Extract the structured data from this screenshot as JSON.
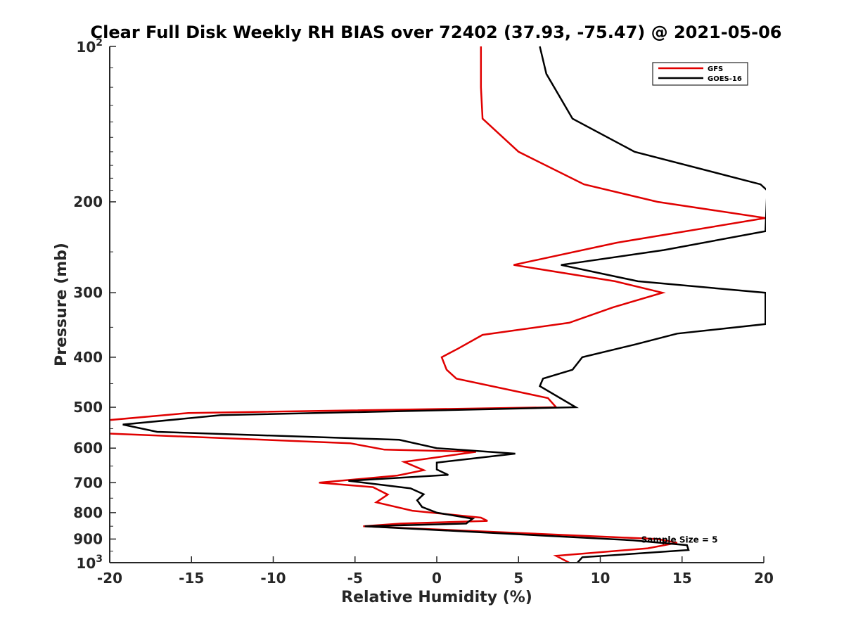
{
  "chart_data": {
    "type": "line",
    "title": "Clear Full Disk Weekly RH BIAS over 72402 (37.93, -75.47) @ 2021-05-06",
    "xlabel": "Relative Humidity (%)",
    "ylabel": "Pressure (mb)",
    "xlim": [
      -20,
      20
    ],
    "ylim": [
      100,
      1000
    ],
    "y_scale": "log",
    "y_reversed": true,
    "grid": false,
    "legend_position": "top-right",
    "x_ticks": [
      -20,
      -15,
      -10,
      -5,
      0,
      5,
      10,
      15,
      20
    ],
    "x_tick_labels": [
      "-20",
      "-15",
      "-10",
      "-5",
      "0",
      "5",
      "10",
      "15",
      "20"
    ],
    "y_ticks": [
      200,
      300,
      400,
      500,
      600,
      700,
      800,
      900
    ],
    "y_tick_labels": [
      "200",
      "300",
      "400",
      "500",
      "600",
      "700",
      "800",
      "900"
    ],
    "y_bound_ticks": [
      {
        "value": 100,
        "base": "10",
        "exp": "2"
      },
      {
        "value": 1000,
        "base": "10",
        "exp": "3"
      }
    ],
    "annotation": {
      "text": "Sample Size = 5",
      "x": 12.5,
      "y": 915
    },
    "series": [
      {
        "name": "GFS",
        "color": "#e00000",
        "points": [
          {
            "x": 2.7,
            "y": 100
          },
          {
            "x": 2.7,
            "y": 120
          },
          {
            "x": 2.8,
            "y": 138
          },
          {
            "x": 5.0,
            "y": 160
          },
          {
            "x": 9.0,
            "y": 185
          },
          {
            "x": 13.5,
            "y": 200
          },
          {
            "x": 20.1,
            "y": 215
          },
          {
            "x": 11.0,
            "y": 240
          },
          {
            "x": 4.7,
            "y": 265
          },
          {
            "x": 10.9,
            "y": 285
          },
          {
            "x": 13.8,
            "y": 300
          },
          {
            "x": 10.8,
            "y": 320
          },
          {
            "x": 8.1,
            "y": 343
          },
          {
            "x": 2.8,
            "y": 362
          },
          {
            "x": 1.3,
            "y": 385
          },
          {
            "x": 0.3,
            "y": 400
          },
          {
            "x": 0.6,
            "y": 423
          },
          {
            "x": 1.2,
            "y": 440
          },
          {
            "x": 6.8,
            "y": 480
          },
          {
            "x": 7.3,
            "y": 500
          },
          {
            "x": -15.2,
            "y": 513
          },
          {
            "x": -20.2,
            "y": 530
          },
          {
            "x": -20.2,
            "y": 562
          },
          {
            "x": -5.3,
            "y": 587
          },
          {
            "x": -3.2,
            "y": 604
          },
          {
            "x": 2.4,
            "y": 610
          },
          {
            "x": -2.0,
            "y": 638
          },
          {
            "x": -0.8,
            "y": 662
          },
          {
            "x": -2.4,
            "y": 678
          },
          {
            "x": -7.2,
            "y": 700
          },
          {
            "x": -3.9,
            "y": 714
          },
          {
            "x": -3.0,
            "y": 738
          },
          {
            "x": -3.7,
            "y": 764
          },
          {
            "x": -1.5,
            "y": 793
          },
          {
            "x": 2.7,
            "y": 818
          },
          {
            "x": 3.1,
            "y": 830
          },
          {
            "x": -2.2,
            "y": 840
          },
          {
            "x": -4.5,
            "y": 850
          },
          {
            "x": 13.5,
            "y": 900
          },
          {
            "x": 14.7,
            "y": 915
          },
          {
            "x": 12.9,
            "y": 938
          },
          {
            "x": 7.3,
            "y": 970
          },
          {
            "x": 8.1,
            "y": 1000
          }
        ]
      },
      {
        "name": "GOES-16",
        "color": "#000000",
        "points": [
          {
            "x": 6.3,
            "y": 100
          },
          {
            "x": 6.7,
            "y": 113
          },
          {
            "x": 8.3,
            "y": 138
          },
          {
            "x": 12.1,
            "y": 160
          },
          {
            "x": 19.8,
            "y": 185
          },
          {
            "x": 20.2,
            "y": 190
          },
          {
            "x": 20.1,
            "y": 228
          },
          {
            "x": 13.9,
            "y": 248
          },
          {
            "x": 7.6,
            "y": 265
          },
          {
            "x": 12.3,
            "y": 285
          },
          {
            "x": 20.1,
            "y": 300
          },
          {
            "x": 20.1,
            "y": 345
          },
          {
            "x": 14.7,
            "y": 360
          },
          {
            "x": 12.1,
            "y": 378
          },
          {
            "x": 8.9,
            "y": 400
          },
          {
            "x": 8.3,
            "y": 423
          },
          {
            "x": 6.5,
            "y": 440
          },
          {
            "x": 6.3,
            "y": 455
          },
          {
            "x": 8.5,
            "y": 500
          },
          {
            "x": -13.2,
            "y": 518
          },
          {
            "x": -19.2,
            "y": 540
          },
          {
            "x": -17.1,
            "y": 558
          },
          {
            "x": -2.3,
            "y": 578
          },
          {
            "x": 0.0,
            "y": 600
          },
          {
            "x": 4.8,
            "y": 615
          },
          {
            "x": 0.0,
            "y": 640
          },
          {
            "x": 0.0,
            "y": 660
          },
          {
            "x": 0.7,
            "y": 676
          },
          {
            "x": -5.4,
            "y": 694
          },
          {
            "x": -1.6,
            "y": 718
          },
          {
            "x": -0.8,
            "y": 737
          },
          {
            "x": -1.2,
            "y": 757
          },
          {
            "x": -0.9,
            "y": 780
          },
          {
            "x": 0.0,
            "y": 800
          },
          {
            "x": 2.2,
            "y": 822
          },
          {
            "x": 2.0,
            "y": 830
          },
          {
            "x": 1.8,
            "y": 840
          },
          {
            "x": -4.4,
            "y": 850
          },
          {
            "x": 12.0,
            "y": 905
          },
          {
            "x": 15.3,
            "y": 925
          },
          {
            "x": 15.4,
            "y": 945
          },
          {
            "x": 8.9,
            "y": 976
          },
          {
            "x": 8.6,
            "y": 1000
          }
        ]
      }
    ]
  }
}
